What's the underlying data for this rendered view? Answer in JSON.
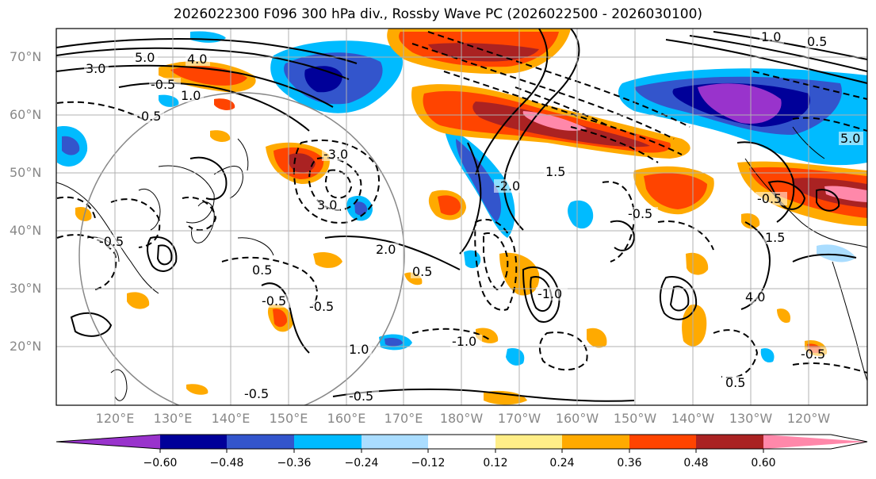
{
  "title": "2026022300 F096 300 hPa div., Rossby Wave PC (2026022500 - 2026030100)",
  "lat_labels": [
    "70°N",
    "60°N",
    "50°N",
    "40°N",
    "30°N",
    "20°N"
  ],
  "lon_labels": [
    "120°E",
    "130°E",
    "140°E",
    "150°E",
    "160°E",
    "170°E",
    "180°W",
    "170°W",
    "160°W",
    "150°W",
    "140°W",
    "130°W",
    "120°W"
  ],
  "colorbar": {
    "colors": [
      "#9933cc",
      "#000099",
      "#3355cc",
      "#00bbff",
      "#aaddff",
      "#ffffff",
      "#ffee88",
      "#ffaa00",
      "#ff4400",
      "#aa2222",
      "#ff88aa"
    ],
    "ticks": [
      "−0.60",
      "−0.48",
      "−0.36",
      "−0.24",
      "−0.12",
      "0.12",
      "0.24",
      "0.36",
      "0.48",
      "0.60"
    ]
  },
  "contour_labels": [
    "5.0",
    "4.0",
    "3.0",
    "-0.5",
    "1.0",
    "0.5",
    "3.0",
    "-2.0",
    "-3.0",
    "1.5",
    "2.0",
    "0.5",
    "-0.5",
    "1.0",
    "-1.0",
    "-0.5",
    "-0.5",
    "-0.5",
    "1.0",
    "0.5",
    "5.0",
    "4.0",
    "-0.5",
    "0.5",
    "-0.5",
    "-1.0",
    "1.5",
    "-0.5",
    "0.5",
    "-0.5"
  ]
}
